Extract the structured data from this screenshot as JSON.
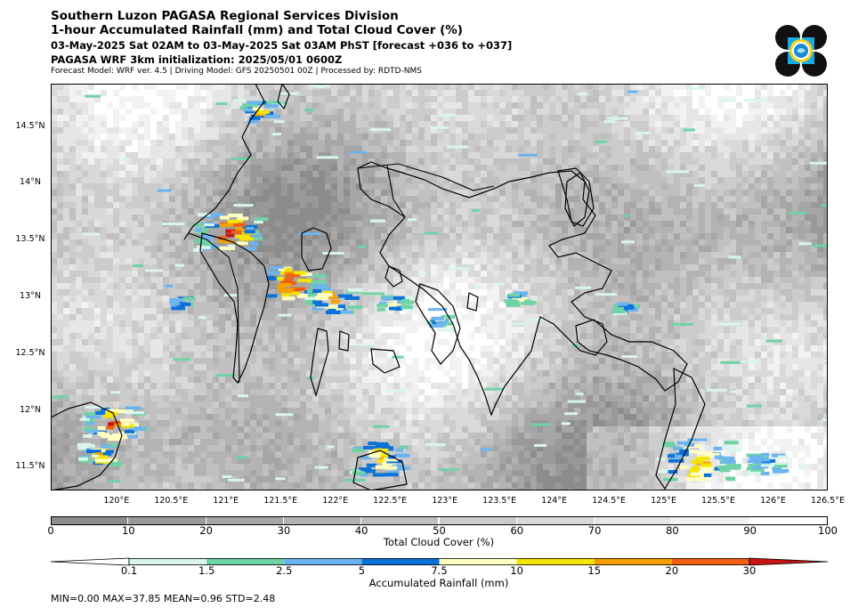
{
  "header": {
    "line1": "Southern Luzon PAGASA Regional Services Division",
    "line2": "1-hour Accumulated Rainfall (mm) and Total Cloud Cover (%)",
    "line3": "03-May-2025 Sat 02AM to 03-May-2025 Sat 03AM PhST [forecast +036 to +037]",
    "line4": "PAGASA WRF 3km initialization: 2025/05/01 0600Z",
    "line5": "Forecast Model: WRF ver. 4.5 | Driving Model: GFS 20250501 00Z | Processed by: RDTD-NMS"
  },
  "map": {
    "lon_range": [
      119.4,
      126.5
    ],
    "lat_range": [
      11.3,
      14.88
    ],
    "lon_ticks": [
      "120°E",
      "120.5°E",
      "121°E",
      "121.5°E",
      "122°E",
      "122.5°E",
      "123°E",
      "123.5°E",
      "124°E",
      "124.5°E",
      "125°E",
      "125.5°E",
      "126°E",
      "126.5°E"
    ],
    "lat_ticks": [
      "14.5°N",
      "14°N",
      "13.5°N",
      "13°N",
      "12.5°N",
      "12°N",
      "11.5°N"
    ]
  },
  "cloud_colorbar": {
    "label": "Total Cloud Cover (%)",
    "ticks": [
      "0",
      "10",
      "20",
      "30",
      "40",
      "50",
      "60",
      "70",
      "80",
      "90",
      "100"
    ],
    "colors": [
      "#8c8c8c",
      "#999999",
      "#a6a6a6",
      "#b3b3b3",
      "#c0c0c0",
      "#cccccc",
      "#d9d9d9",
      "#e6e6e6",
      "#f2f2f2",
      "#ffffff"
    ]
  },
  "rain_colorbar": {
    "label": "Accumulated Rainfall (mm)",
    "ticks": [
      "0.1",
      "1.5",
      "2.5",
      "5",
      "7.5",
      "10",
      "15",
      "20",
      "30"
    ],
    "colors": [
      "#d9f5ec",
      "#6fd3a6",
      "#6bb4f0",
      "#0a72d8",
      "#ffffc0",
      "#f5e400",
      "#f5a000",
      "#f06010",
      "#c81414"
    ]
  },
  "stats": "MIN=0.00   MAX=37.85   MEAN=0.96   STD=2.48"
}
